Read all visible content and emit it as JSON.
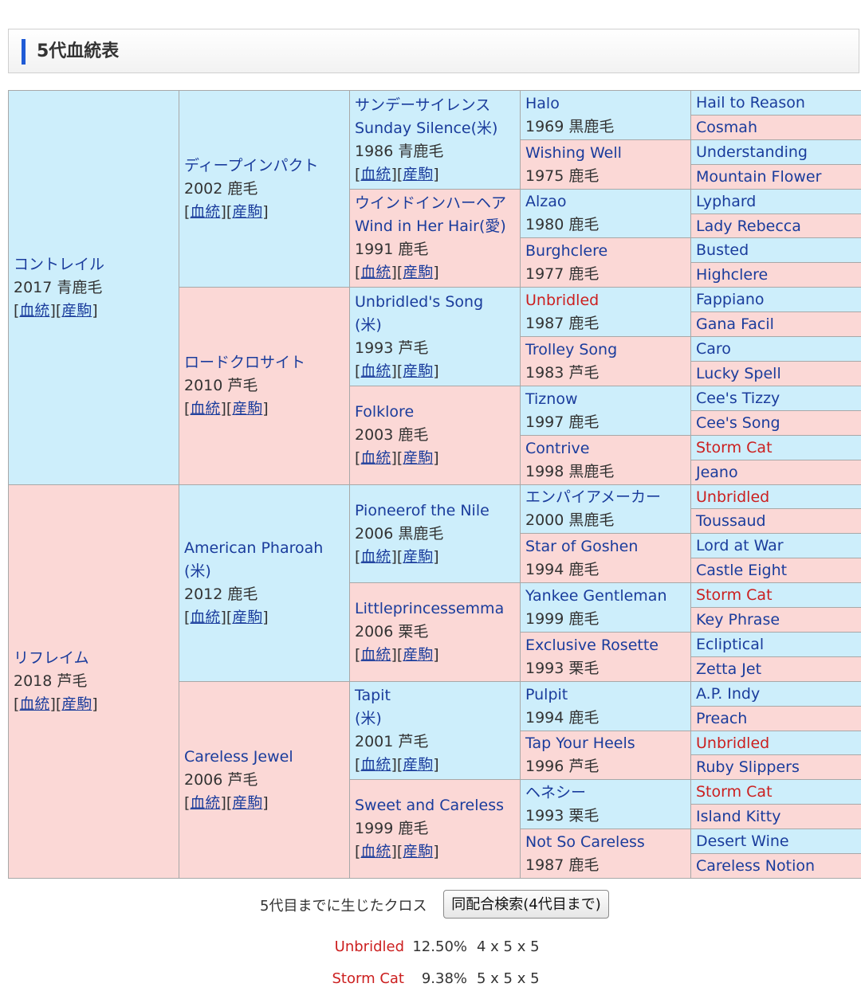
{
  "header": {
    "title": "5代血統表"
  },
  "links": {
    "pedigree": "血統",
    "offspring": "産駒"
  },
  "horses": {
    "s": {
      "name": "コントレイル",
      "info": "2017 青鹿毛",
      "links": true
    },
    "d": {
      "name": "リフレイム",
      "info": "2018 芦毛",
      "links": true
    },
    "ss": {
      "name": "ディープインパクト",
      "info": "2002 鹿毛",
      "links": true
    },
    "sd": {
      "name": "ロードクロサイト",
      "info": "2010 芦毛",
      "links": true
    },
    "ds": {
      "name": "American Pharoah",
      "name2": "(米)",
      "info": "2012 鹿毛",
      "links": true
    },
    "dd": {
      "name": "Careless Jewel",
      "info": "2006 芦毛",
      "links": true
    },
    "sss": {
      "name": "サンデーサイレンス",
      "name2": "Sunday Silence(米)",
      "info": "1986 青鹿毛",
      "links": true
    },
    "ssd": {
      "name": "ウインドインハーヘア",
      "name2": "Wind in Her Hair(愛)",
      "info": "1991 鹿毛",
      "links": true
    },
    "sds": {
      "name": "Unbridled's Song",
      "name2": "(米)",
      "info": "1993 芦毛",
      "links": true
    },
    "sdd": {
      "name": "Folklore",
      "info": "2003 鹿毛",
      "links": true
    },
    "dss": {
      "name": "Pioneerof the Nile",
      "info": "2006 黒鹿毛",
      "links": true
    },
    "dsd": {
      "name": "Littleprincessemma",
      "info": "2006 栗毛",
      "links": true
    },
    "dds": {
      "name": "Tapit",
      "name2": "(米)",
      "info": "2001 芦毛",
      "links": true
    },
    "ddd": {
      "name": "Sweet and Careless",
      "info": "1999 鹿毛",
      "links": true
    },
    "ssss": {
      "name": "Halo",
      "info": "1969 黒鹿毛"
    },
    "sssd": {
      "name": "Wishing Well",
      "info": "1975 鹿毛"
    },
    "ssds": {
      "name": "Alzao",
      "info": "1980 鹿毛"
    },
    "ssdd": {
      "name": "Burghclere",
      "info": "1977 鹿毛"
    },
    "sdss": {
      "name": "Unbridled",
      "info": "1987 鹿毛",
      "red": true
    },
    "sdsd": {
      "name": "Trolley Song",
      "info": "1983 芦毛"
    },
    "sdds": {
      "name": "Tiznow",
      "info": "1997 鹿毛"
    },
    "sddd": {
      "name": "Contrive",
      "info": "1998 黒鹿毛"
    },
    "dsss": {
      "name": "エンパイアメーカー",
      "info": "2000 黒鹿毛"
    },
    "dssd": {
      "name": "Star of Goshen",
      "info": "1994 鹿毛"
    },
    "dsds": {
      "name": "Yankee Gentleman",
      "info": "1999 鹿毛"
    },
    "dsdd": {
      "name": "Exclusive Rosette",
      "info": "1993 栗毛"
    },
    "ddss": {
      "name": "Pulpit",
      "info": "1994 鹿毛"
    },
    "ddsd": {
      "name": "Tap Your Heels",
      "info": "1996 芦毛"
    },
    "ddds": {
      "name": "ヘネシー",
      "info": "1993 栗毛"
    },
    "dddd": {
      "name": "Not So Careless",
      "info": "1987 鹿毛"
    },
    "sssss": {
      "name": "Hail to Reason"
    },
    "ssssd": {
      "name": "Cosmah"
    },
    "sssds": {
      "name": "Understanding"
    },
    "sssdd": {
      "name": "Mountain Flower"
    },
    "ssdss": {
      "name": "Lyphard"
    },
    "ssdsd": {
      "name": "Lady Rebecca"
    },
    "ssdds": {
      "name": "Busted"
    },
    "ssddd": {
      "name": "Highclere"
    },
    "sdsss": {
      "name": "Fappiano"
    },
    "sdssd": {
      "name": "Gana Facil"
    },
    "sdsds": {
      "name": "Caro"
    },
    "sdsdd": {
      "name": "Lucky Spell"
    },
    "sddss": {
      "name": "Cee's Tizzy"
    },
    "sddsd": {
      "name": "Cee's Song"
    },
    "sddds": {
      "name": "Storm Cat",
      "red": true
    },
    "sdddd": {
      "name": "Jeano"
    },
    "dssss": {
      "name": "Unbridled",
      "red": true
    },
    "dsssd": {
      "name": "Toussaud"
    },
    "dssds": {
      "name": "Lord at War"
    },
    "dssdd": {
      "name": "Castle Eight"
    },
    "dsdss": {
      "name": "Storm Cat",
      "red": true
    },
    "dsdsd": {
      "name": "Key Phrase"
    },
    "dsdds": {
      "name": "Ecliptical"
    },
    "dsddd": {
      "name": "Zetta Jet"
    },
    "ddsss": {
      "name": "A.P. Indy"
    },
    "ddssd": {
      "name": "Preach"
    },
    "ddsds": {
      "name": "Unbridled",
      "red": true
    },
    "ddsdd": {
      "name": "Ruby Slippers"
    },
    "dddss": {
      "name": "Storm Cat",
      "red": true
    },
    "dddsd": {
      "name": "Island Kitty"
    },
    "dddds": {
      "name": "Desert Wine"
    },
    "ddddd": {
      "name": "Careless Notion"
    }
  },
  "cross": {
    "label": "5代目までに生じたクロス",
    "search_button": "同配合検索(4代目まで)",
    "items": [
      {
        "name": "Unbridled",
        "percent": "12.50%",
        "gens": "4 x 5 x 5"
      },
      {
        "name": "Storm Cat",
        "percent": "9.38%",
        "gens": "5 x 5 x 5"
      }
    ]
  }
}
